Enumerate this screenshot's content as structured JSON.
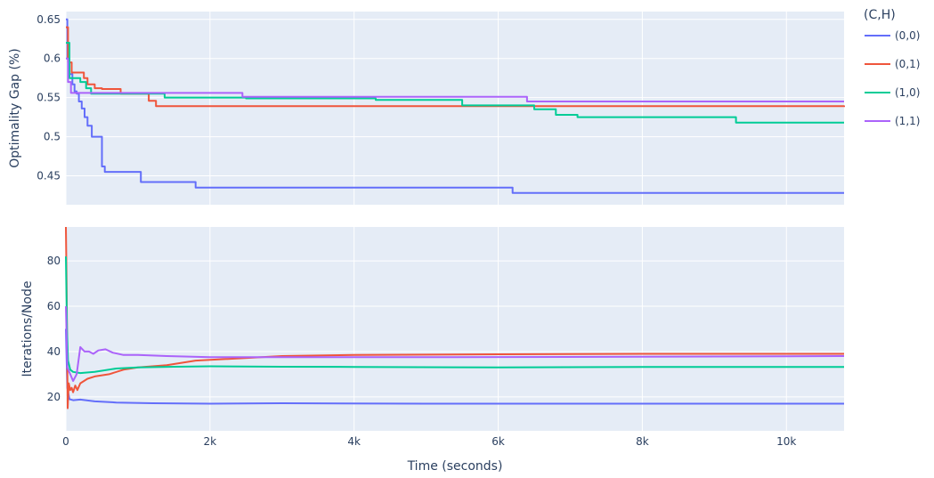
{
  "chart_data": {
    "type": "line",
    "xlabel": "Time (seconds)",
    "xlim": [
      0,
      10800
    ],
    "x_ticks": [
      0,
      2000,
      4000,
      6000,
      8000,
      10000
    ],
    "x_tick_labels": [
      "0",
      "2k",
      "4k",
      "6k",
      "8k",
      "10k"
    ],
    "legend": {
      "title": "(C,H)",
      "placement": "right",
      "entries": [
        {
          "label": "(0,0)",
          "color": "#636efa"
        },
        {
          "label": "(0,1)",
          "color": "#EF553B"
        },
        {
          "label": "(1,0)",
          "color": "#00cc96"
        },
        {
          "label": "(1,1)",
          "color": "#ab63fa"
        }
      ]
    },
    "subplots": [
      {
        "ylabel": "Optimality Gap (%)",
        "ylim": [
          0.413,
          0.66
        ],
        "y_ticks": [
          0.45,
          0.5,
          0.55,
          0.6,
          0.65
        ],
        "y_tick_labels": [
          "0.45",
          "0.5",
          "0.55",
          "0.6",
          "0.65"
        ],
        "grid": true,
        "line_shape": "step",
        "series": [
          {
            "name": "(0,0)",
            "color": "#636efa",
            "x": [
              0,
              20,
              50,
              90,
              120,
              150,
              180,
              220,
              260,
              300,
              360,
              430,
              500,
              540,
              1040,
              1800,
              6200,
              10800
            ],
            "y": [
              0.65,
              0.6,
              0.58,
              0.567,
              0.558,
              0.555,
              0.545,
              0.536,
              0.525,
              0.514,
              0.5,
              0.5,
              0.462,
              0.455,
              0.442,
              0.435,
              0.428,
              0.428
            ]
          },
          {
            "name": "(0,1)",
            "color": "#EF553B",
            "x": [
              0,
              30,
              80,
              250,
              300,
              400,
              500,
              760,
              1150,
              1250,
              10800
            ],
            "y": [
              0.64,
              0.595,
              0.582,
              0.575,
              0.567,
              0.562,
              0.561,
              0.555,
              0.546,
              0.539,
              0.538
            ]
          },
          {
            "name": "(1,0)",
            "color": "#00cc96",
            "x": [
              0,
              50,
              120,
              200,
              280,
              350,
              1370,
              2500,
              4300,
              5500,
              6500,
              6800,
              7100,
              9300,
              10800
            ],
            "y": [
              0.62,
              0.575,
              0.575,
              0.57,
              0.562,
              0.555,
              0.55,
              0.549,
              0.547,
              0.54,
              0.535,
              0.528,
              0.525,
              0.518,
              0.518
            ]
          },
          {
            "name": "(1,1)",
            "color": "#ab63fa",
            "x": [
              0,
              30,
              70,
              2450,
              6400,
              10800
            ],
            "y": [
              0.6,
              0.57,
              0.556,
              0.551,
              0.545,
              0.545
            ]
          }
        ]
      },
      {
        "ylabel": "Iterations/Node",
        "ylim": [
          5,
          95
        ],
        "y_ticks": [
          20,
          40,
          60,
          80
        ],
        "y_tick_labels": [
          "20",
          "40",
          "60",
          "80"
        ],
        "grid": true,
        "line_shape": "linear",
        "series": [
          {
            "name": "(0,0)",
            "color": "#636efa",
            "x": [
              0,
              20,
              50,
              100,
              200,
              400,
              700,
              1200,
              2000,
              3000,
              5000,
              7000,
              9000,
              10800
            ],
            "y": [
              50,
              24,
              19,
              18.5,
              18.8,
              18.0,
              17.5,
              17.2,
              17.0,
              17.2,
              17.0,
              17.0,
              17.0,
              17.0
            ]
          },
          {
            "name": "(0,1)",
            "color": "#EF553B",
            "x": [
              0,
              10,
              25,
              40,
              60,
              80,
              100,
              130,
              160,
              200,
              300,
              400,
              600,
              800,
              1000,
              1400,
              1800,
              2400,
              3000,
              4000,
              6000,
              8000,
              10800
            ],
            "y": [
              95,
              70,
              15,
              26,
              23,
              24,
              22,
              25,
              23,
              26,
              28,
              29,
              30,
              32,
              33,
              34,
              36,
              37,
              38,
              38.5,
              38.8,
              39.0,
              39.0
            ]
          },
          {
            "name": "(1,0)",
            "color": "#00cc96",
            "x": [
              0,
              15,
              30,
              60,
              100,
              200,
              400,
              700,
              1000,
              1500,
              2000,
              3000,
              4000,
              6000,
              8000,
              10800
            ],
            "y": [
              82,
              50,
              36,
              32,
              31,
              30.5,
              31,
              32.5,
              33,
              33.3,
              33.5,
              33.3,
              33.2,
              33.0,
              33.2,
              33.2
            ]
          },
          {
            "name": "(1,1)",
            "color": "#ab63fa",
            "x": [
              0,
              20,
              60,
              100,
              150,
              200,
              260,
              320,
              380,
              450,
              550,
              650,
              800,
              1000,
              1400,
              2000,
              3000,
              5000,
              8000,
              10800
            ],
            "y": [
              60,
              33,
              30,
              27,
              30,
              42,
              40,
              40,
              39,
              40.5,
              41,
              39.5,
              38.5,
              38.5,
              38,
              37.5,
              37.5,
              37.5,
              37.7,
              38
            ]
          }
        ]
      }
    ]
  }
}
